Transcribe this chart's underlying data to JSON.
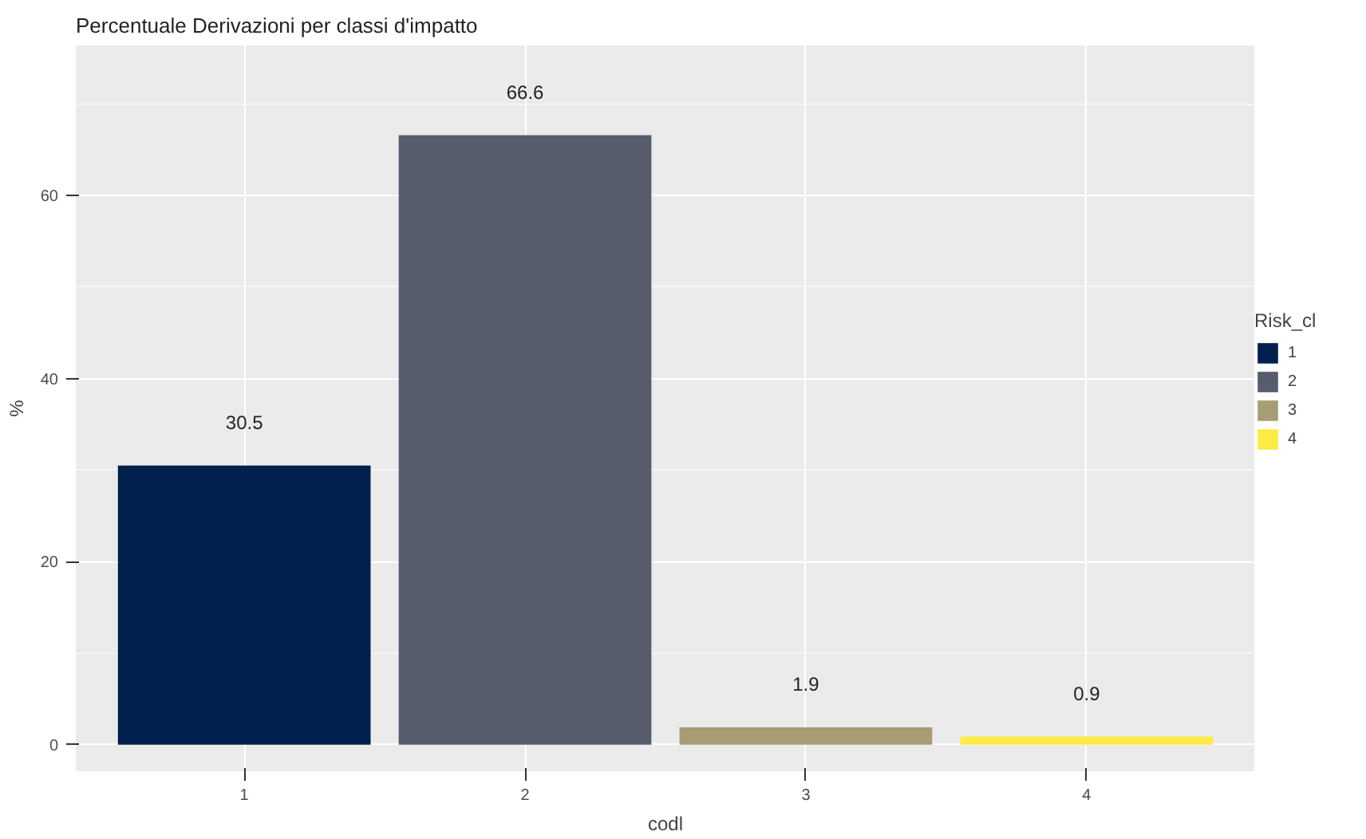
{
  "chart_data": {
    "type": "bar",
    "title": "Percentuale Derivazioni per classi d'impatto",
    "xlabel": "codl",
    "ylabel": "%",
    "legend_title": "Risk_cl",
    "categories": [
      "1",
      "2",
      "3",
      "4"
    ],
    "series": [
      {
        "name": "1",
        "color": "#00204d",
        "values": [
          30.5,
          null,
          null,
          null
        ]
      },
      {
        "name": "2",
        "color": "#575c6d",
        "values": [
          null,
          66.6,
          null,
          null
        ]
      },
      {
        "name": "3",
        "color": "#a69d75",
        "values": [
          null,
          null,
          1.9,
          null
        ]
      },
      {
        "name": "4",
        "color": "#ffea46",
        "values": [
          null,
          null,
          null,
          0.9
        ]
      }
    ],
    "ylim": [
      -2.9,
      76.4
    ],
    "yticks": [
      0,
      20,
      40,
      60
    ],
    "grid": true,
    "legend": "right",
    "data_labels": true
  }
}
